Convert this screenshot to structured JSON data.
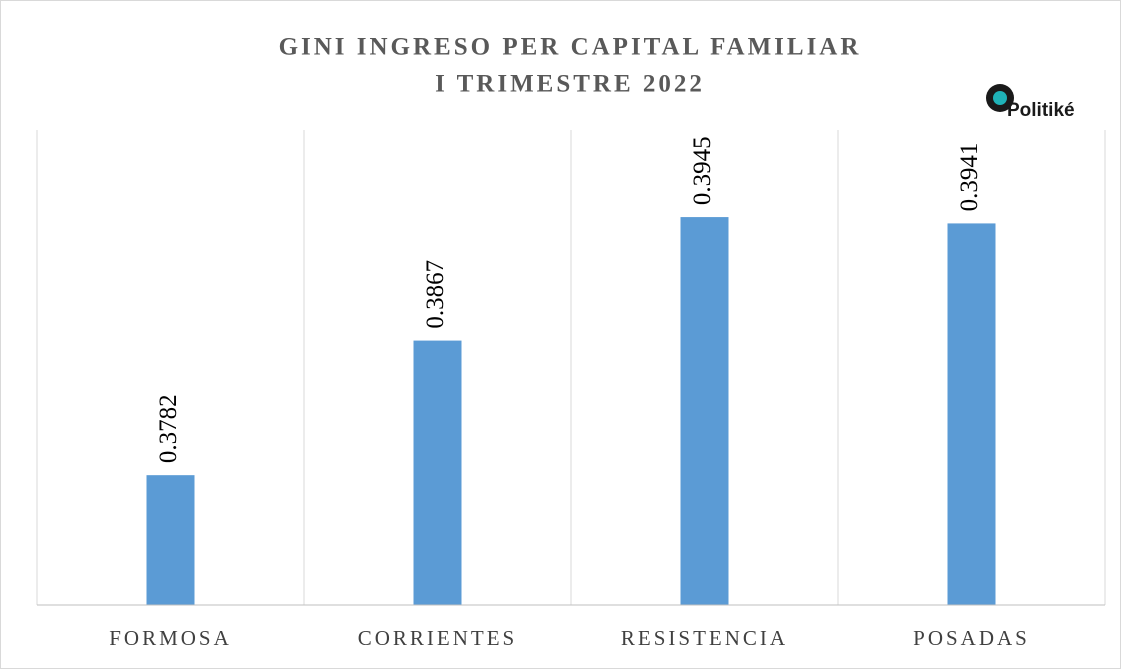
{
  "chart_data": {
    "type": "bar",
    "title": [
      "GINI INGRESO PER CAPITAL FAMILIAR",
      "I TRIMESTRE 2022"
    ],
    "logo_text": "Politiké",
    "categories": [
      "FORMOSA",
      "CORRIENTES",
      "RESISTENCIA",
      "POSADAS"
    ],
    "values": [
      0.3782,
      0.3867,
      0.3945,
      0.3941
    ],
    "color": "#5b9bd5",
    "ylim": [
      0.37,
      0.4
    ],
    "category_separators": true
  }
}
